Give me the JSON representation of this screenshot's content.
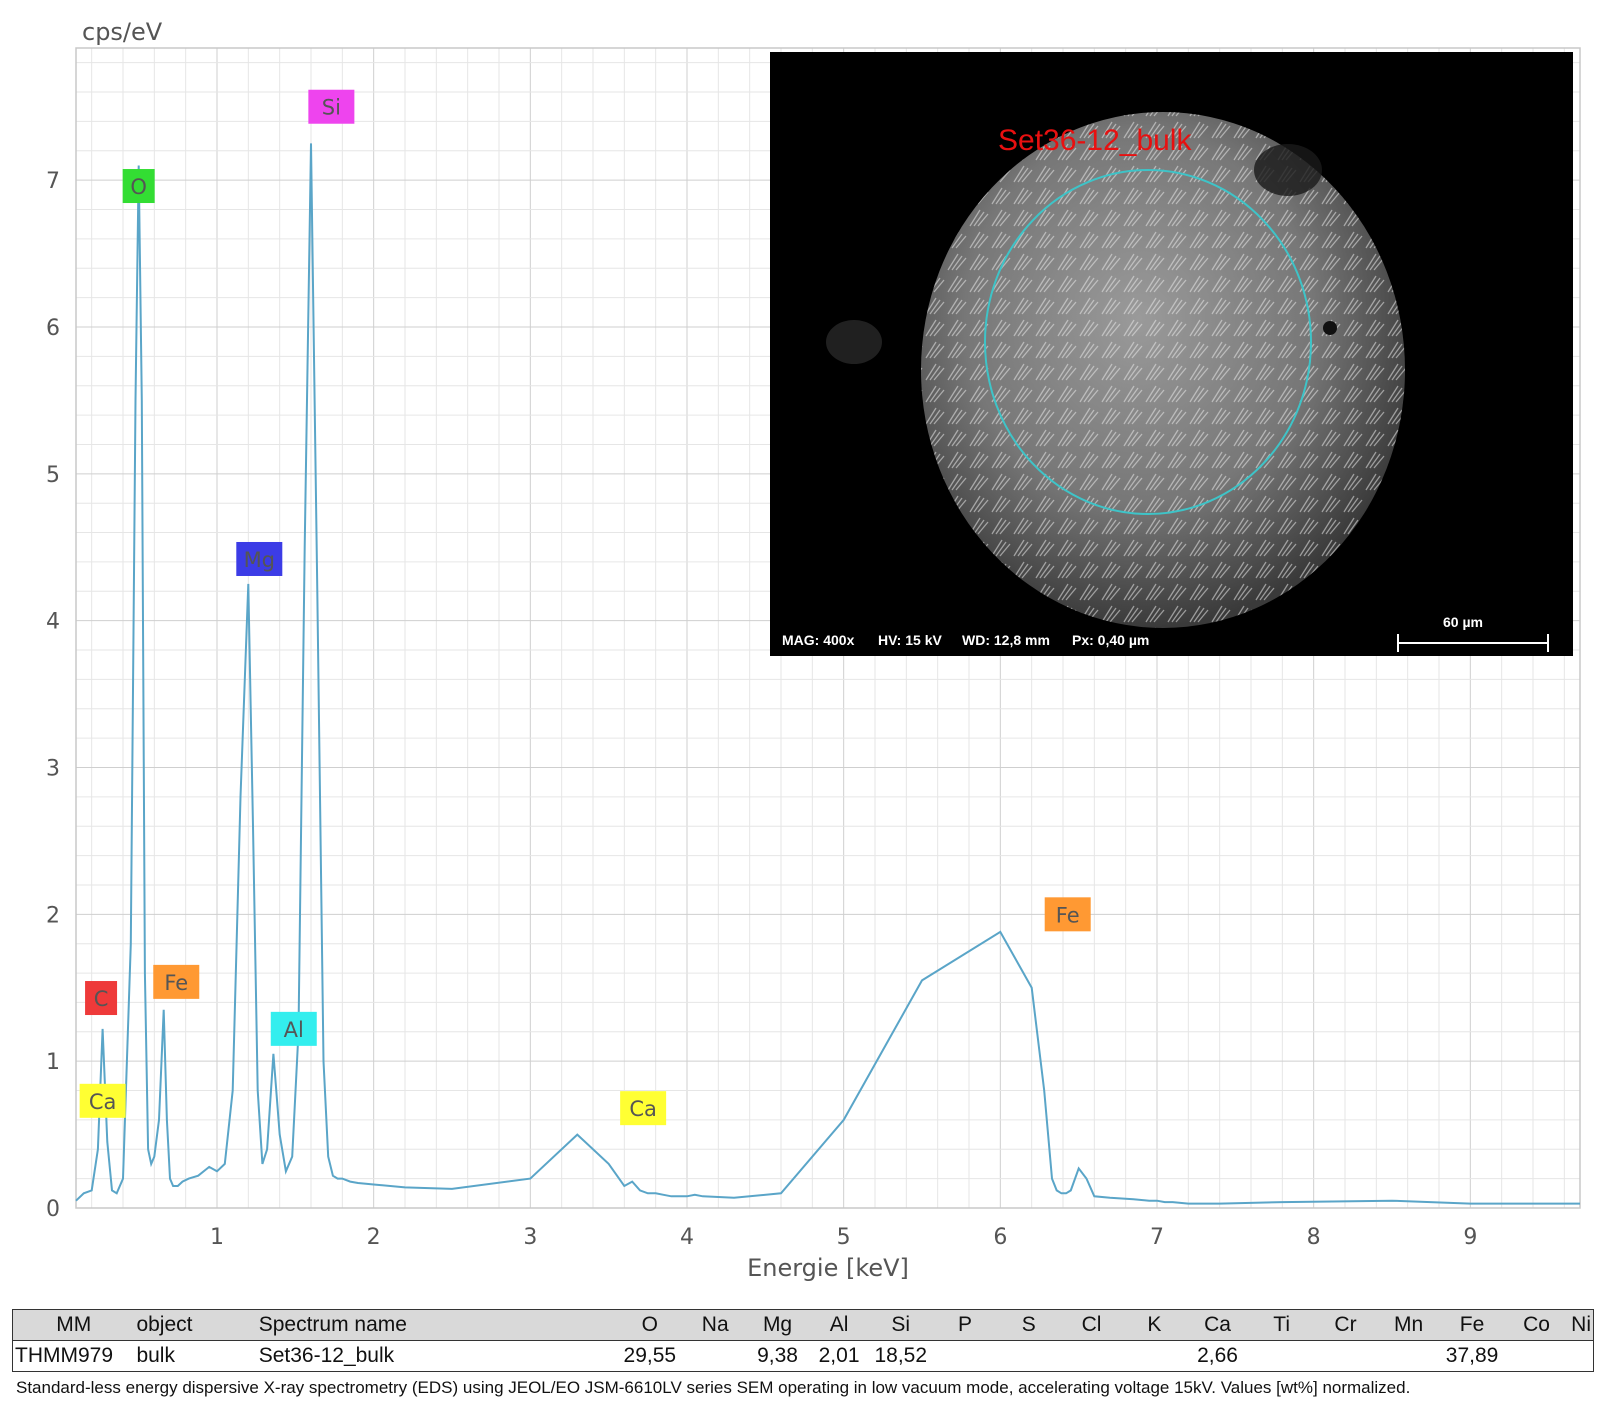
{
  "chart_data": {
    "type": "line",
    "ylabel": "cps/eV",
    "xlabel": "Energie [keV]",
    "xlim": [
      0.1,
      9.7
    ],
    "ylim": [
      0,
      7.9
    ],
    "x_ticks": [
      1,
      2,
      3,
      4,
      5,
      6,
      7,
      8,
      9
    ],
    "y_ticks": [
      0,
      1,
      2,
      3,
      4,
      5,
      6,
      7
    ],
    "grid": true,
    "line_color": "#5aa5c8",
    "series": [
      {
        "x": [
          0.1,
          0.15,
          0.2,
          0.24,
          0.27,
          0.3,
          0.33,
          0.36,
          0.4,
          0.45,
          0.48,
          0.5,
          0.52,
          0.54,
          0.56,
          0.58,
          0.6,
          0.63,
          0.66,
          0.68,
          0.7,
          0.72,
          0.75,
          0.78,
          0.82,
          0.88,
          0.95,
          1.0,
          1.05,
          1.1,
          1.15,
          1.2,
          1.23,
          1.26,
          1.29,
          1.32,
          1.36,
          1.4,
          1.44,
          1.48,
          1.52,
          1.56,
          1.6,
          1.64,
          1.68,
          1.71,
          1.74,
          1.77,
          1.8,
          1.85,
          1.9,
          2.0,
          2.2,
          2.5,
          3.0,
          3.3,
          3.5,
          3.6,
          3.65,
          3.7,
          3.75,
          3.8,
          3.85,
          3.9,
          4.0,
          4.05,
          4.1,
          4.3,
          4.6,
          5.0,
          5.5,
          6.0,
          6.2,
          6.28,
          6.33,
          6.36,
          6.39,
          6.42,
          6.45,
          6.5,
          6.55,
          6.6,
          6.7,
          6.85,
          6.95,
          7.0,
          7.05,
          7.1,
          7.2,
          7.4,
          7.8,
          8.5,
          9.0,
          9.7
        ],
        "y": [
          0.05,
          0.1,
          0.12,
          0.4,
          1.22,
          0.45,
          0.12,
          0.1,
          0.2,
          1.8,
          5.5,
          7.1,
          5.5,
          1.6,
          0.4,
          0.3,
          0.35,
          0.6,
          1.35,
          0.6,
          0.2,
          0.15,
          0.15,
          0.18,
          0.2,
          0.22,
          0.28,
          0.25,
          0.3,
          0.8,
          2.8,
          4.25,
          2.6,
          0.8,
          0.3,
          0.4,
          1.05,
          0.5,
          0.25,
          0.35,
          1.2,
          4.5,
          7.25,
          4.2,
          1.0,
          0.35,
          0.22,
          0.2,
          0.2,
          0.18,
          0.17,
          0.16,
          0.14,
          0.13,
          0.2,
          0.5,
          0.3,
          0.15,
          0.18,
          0.12,
          0.1,
          0.1,
          0.09,
          0.08,
          0.08,
          0.09,
          0.08,
          0.07,
          0.1,
          0.6,
          1.55,
          1.88,
          1.5,
          0.8,
          0.2,
          0.12,
          0.1,
          0.1,
          0.12,
          0.27,
          0.2,
          0.08,
          0.07,
          0.06,
          0.05,
          0.05,
          0.04,
          0.04,
          0.03,
          0.03,
          0.04,
          0.05,
          0.03,
          0.03
        ],
        "note": ""
      }
    ],
    "peak_labels": [
      {
        "text": "C",
        "x": 0.26,
        "y": 1.43,
        "color": "#ee3a3a"
      },
      {
        "text": "Ca",
        "x": 0.27,
        "y": 0.73,
        "color": "#ffff33"
      },
      {
        "text": "O",
        "x": 0.5,
        "y": 6.96,
        "color": "#33dd33"
      },
      {
        "text": "Fe",
        "x": 0.74,
        "y": 1.54,
        "color": "#ff9933"
      },
      {
        "text": "Mg",
        "x": 1.27,
        "y": 4.42,
        "color": "#3c3ce6"
      },
      {
        "text": "Al",
        "x": 1.49,
        "y": 1.22,
        "color": "#33eeee"
      },
      {
        "text": "Si",
        "x": 1.73,
        "y": 7.5,
        "color": "#ee44ee"
      },
      {
        "text": "Ca",
        "x": 3.72,
        "y": 0.68,
        "color": "#ffff33"
      },
      {
        "text": "Fe",
        "x": 6.43,
        "y": 2.0,
        "color": "#ff9933"
      }
    ]
  },
  "sem_image": {
    "label": "Set36-12_bulk",
    "mag": "MAG: 400x",
    "hv": "HV: 15 kV",
    "wd": "WD: 12,8 mm",
    "px": "Px: 0,40 µm",
    "scale": "60 µm"
  },
  "table": {
    "headers": [
      "MM",
      "object",
      "Spectrum name",
      "O",
      "Na",
      "Mg",
      "Al",
      "Si",
      "P",
      "S",
      "Cl",
      "K",
      "Ca",
      "Ti",
      "Cr",
      "Mn",
      "Fe",
      "Co",
      "Ni"
    ],
    "row": [
      "THMM979",
      "bulk",
      "Set36-12_bulk",
      "29,55",
      "",
      "9,38",
      "2,01",
      "18,52",
      "",
      "",
      "",
      "",
      "2,66",
      "",
      "",
      "",
      "37,89",
      "",
      ""
    ]
  },
  "caption": "Standard-less energy dispersive X-ray spectrometry (EDS) using JEOL/EO JSM-6610LV series SEM operating in low vacuum mode, accelerating voltage 15kV. Values [wt%] normalized."
}
